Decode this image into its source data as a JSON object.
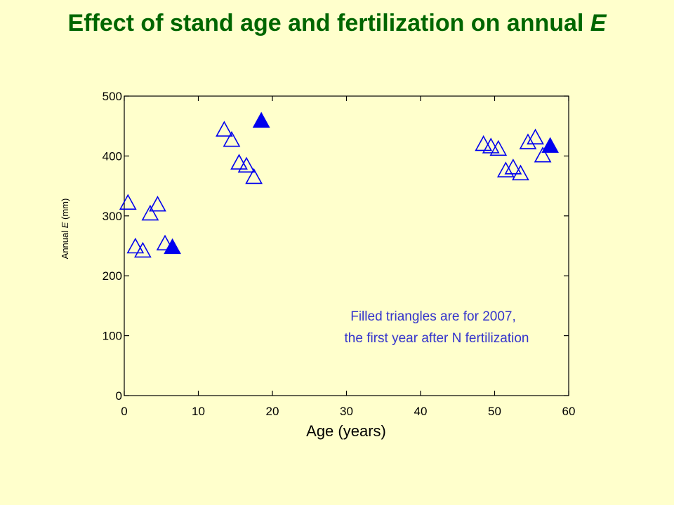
{
  "slide": {
    "title_main": "Effect of stand age and fertilization on annual ",
    "title_var": "E"
  },
  "chart_data": {
    "type": "scatter",
    "title": "Effect of stand age and fertilization on annual E",
    "xlabel": "Age (years)",
    "ylabel_prefix": "Annual ",
    "ylabel_var": "E",
    "ylabel_suffix": " (mm)",
    "xlim": [
      0,
      60
    ],
    "ylim": [
      0,
      500
    ],
    "xticks": [
      0,
      10,
      20,
      30,
      40,
      50,
      60
    ],
    "yticks": [
      0,
      100,
      200,
      300,
      400,
      500
    ],
    "grid": false,
    "marker_color": "#0000ee",
    "annotation": [
      "Filled triangles are for 2007,",
      "the first year after N fertilization"
    ],
    "series": [
      {
        "marker": "open-triangle",
        "points": [
          [
            0.5,
            323
          ],
          [
            1.5,
            250
          ],
          [
            2.5,
            243
          ],
          [
            3.5,
            305
          ],
          [
            4.5,
            320
          ],
          [
            5.5,
            255
          ],
          [
            13.5,
            445
          ],
          [
            14.5,
            428
          ],
          [
            15.5,
            390
          ],
          [
            16.5,
            385
          ],
          [
            17.5,
            366
          ],
          [
            48.5,
            421
          ],
          [
            49.5,
            417
          ],
          [
            50.5,
            413
          ],
          [
            51.5,
            377
          ],
          [
            52.5,
            382
          ],
          [
            53.5,
            372
          ],
          [
            54.5,
            424
          ],
          [
            55.5,
            432
          ],
          [
            56.5,
            402
          ]
        ]
      },
      {
        "marker": "filled-triangle",
        "points": [
          [
            6.5,
            249
          ],
          [
            18.5,
            460
          ],
          [
            57.5,
            418
          ]
        ]
      }
    ]
  }
}
